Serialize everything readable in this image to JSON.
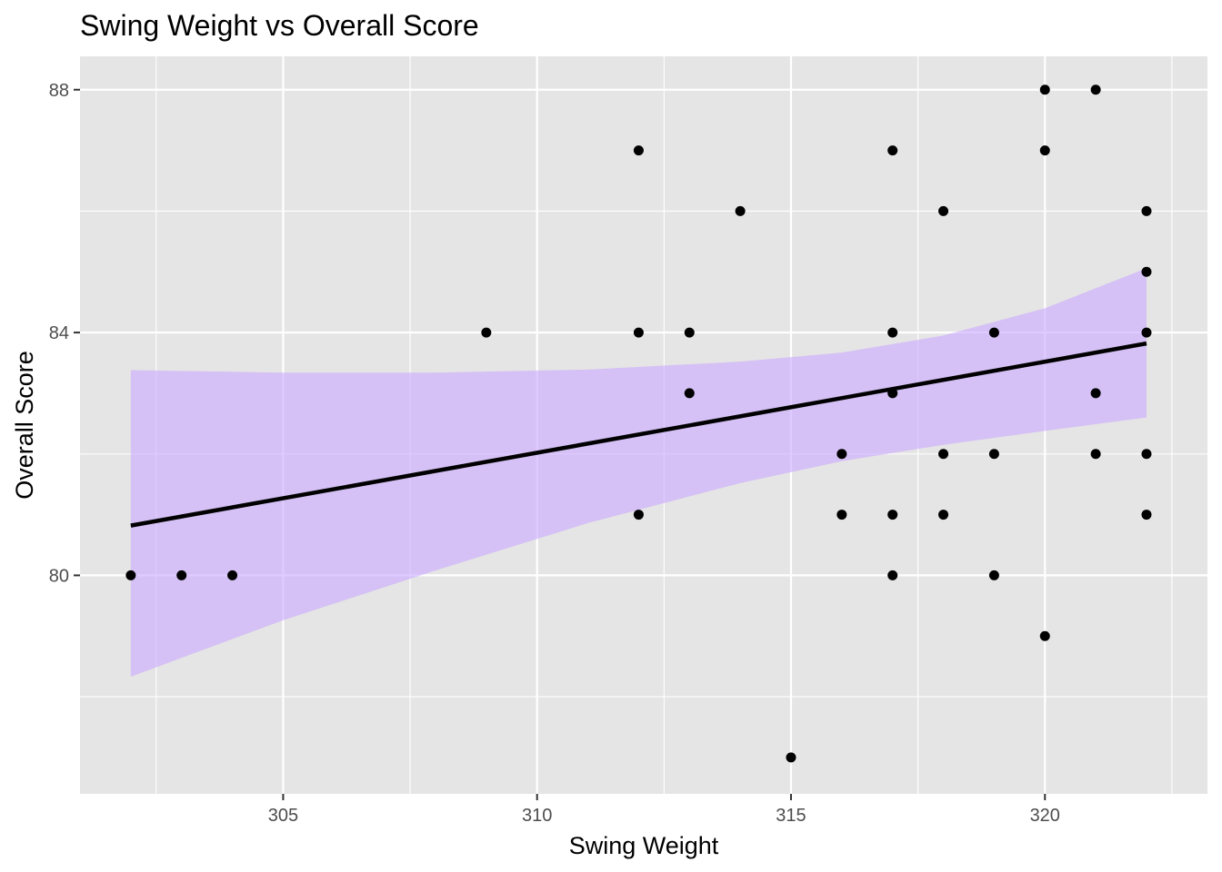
{
  "chart_data": {
    "type": "scatter",
    "title": "Swing Weight vs Overall Score",
    "xlabel": "Swing Weight",
    "ylabel": "Overall Score",
    "xlim": [
      301.0,
      323.2
    ],
    "ylim": [
      76.4,
      88.55
    ],
    "x_ticks": [
      305,
      310,
      315,
      320
    ],
    "y_ticks": [
      80,
      84,
      88
    ],
    "grid": true,
    "legend": "none",
    "colors": {
      "panel_background": "#e5e5e5",
      "grid": "#ffffff",
      "points": "#000000",
      "trend_line": "#000000",
      "confidence_band": "#c9a8ff"
    },
    "points": [
      {
        "x": 302,
        "y": 80
      },
      {
        "x": 303,
        "y": 80
      },
      {
        "x": 304,
        "y": 80
      },
      {
        "x": 309,
        "y": 84
      },
      {
        "x": 312,
        "y": 87
      },
      {
        "x": 312,
        "y": 84
      },
      {
        "x": 312,
        "y": 81
      },
      {
        "x": 313,
        "y": 84
      },
      {
        "x": 313,
        "y": 83
      },
      {
        "x": 314,
        "y": 86
      },
      {
        "x": 315,
        "y": 77
      },
      {
        "x": 316,
        "y": 82
      },
      {
        "x": 316,
        "y": 81
      },
      {
        "x": 317,
        "y": 87
      },
      {
        "x": 317,
        "y": 84
      },
      {
        "x": 317,
        "y": 83
      },
      {
        "x": 317,
        "y": 81
      },
      {
        "x": 317,
        "y": 80
      },
      {
        "x": 318,
        "y": 86
      },
      {
        "x": 318,
        "y": 82
      },
      {
        "x": 318,
        "y": 81
      },
      {
        "x": 319,
        "y": 84
      },
      {
        "x": 319,
        "y": 82
      },
      {
        "x": 319,
        "y": 80
      },
      {
        "x": 320,
        "y": 88
      },
      {
        "x": 320,
        "y": 87
      },
      {
        "x": 320,
        "y": 79
      },
      {
        "x": 321,
        "y": 88
      },
      {
        "x": 321,
        "y": 83
      },
      {
        "x": 321,
        "y": 82
      },
      {
        "x": 322,
        "y": 86
      },
      {
        "x": 322,
        "y": 85
      },
      {
        "x": 322,
        "y": 84
      },
      {
        "x": 322,
        "y": 82
      },
      {
        "x": 322,
        "y": 81
      }
    ],
    "trend_line": {
      "x": [
        302,
        322
      ],
      "y": [
        80.82,
        83.82
      ]
    },
    "confidence_band": {
      "x": [
        302,
        305,
        308,
        311,
        314,
        316,
        318,
        320,
        322
      ],
      "lower": [
        78.33,
        79.26,
        80.08,
        80.86,
        81.52,
        81.88,
        82.15,
        82.38,
        82.6
      ],
      "upper": [
        83.38,
        83.34,
        83.34,
        83.39,
        83.52,
        83.67,
        83.95,
        84.4,
        85.06
      ]
    }
  }
}
